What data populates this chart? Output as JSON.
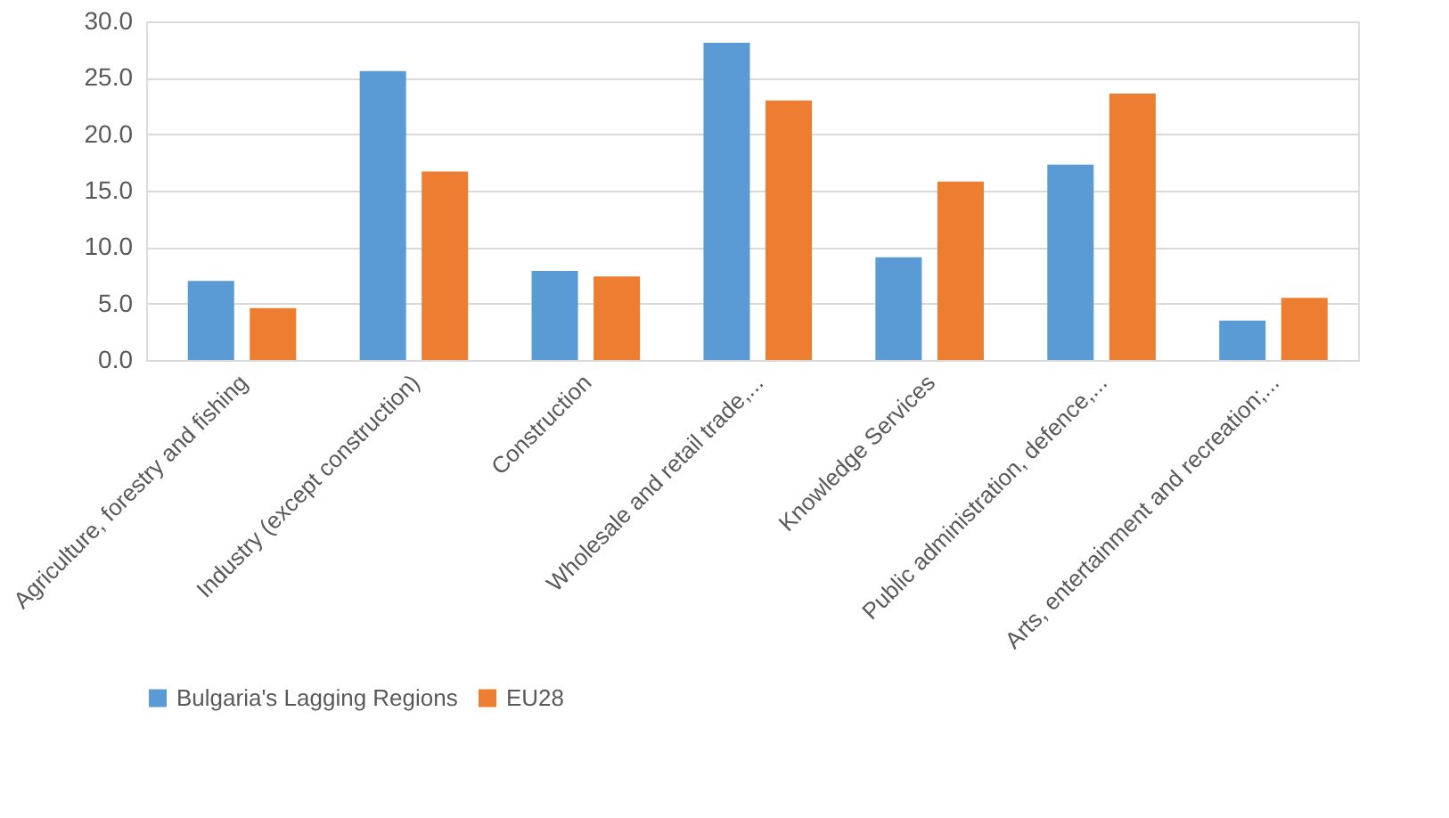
{
  "chart_data": {
    "type": "bar",
    "categories": [
      "Agriculture, forestry and fishing",
      "Industry (except construction)",
      "Construction",
      "Wholesale and retail trade,...",
      "Knowledge Services",
      "Public administration, defence,...",
      "Arts, entertainment and recreation;..."
    ],
    "series": [
      {
        "name": "Bulgaria's Lagging Regions",
        "color": "#5b9bd5",
        "values": [
          7.0,
          25.6,
          7.9,
          28.1,
          9.1,
          17.3,
          3.5
        ]
      },
      {
        "name": "EU28",
        "color": "#ed7d31",
        "values": [
          4.6,
          16.7,
          7.4,
          23.0,
          15.8,
          23.6,
          5.5
        ]
      }
    ],
    "ylim": [
      0,
      30
    ],
    "yticks": [
      {
        "value": 0,
        "label": "0.0"
      },
      {
        "value": 5,
        "label": "5.0"
      },
      {
        "value": 10,
        "label": "10.0"
      },
      {
        "value": 15,
        "label": "15.0"
      },
      {
        "value": 20,
        "label": "20.0"
      },
      {
        "value": 25,
        "label": "25.0"
      },
      {
        "value": 30,
        "label": "30.0"
      }
    ],
    "grid": "y",
    "legend": "bottom"
  }
}
